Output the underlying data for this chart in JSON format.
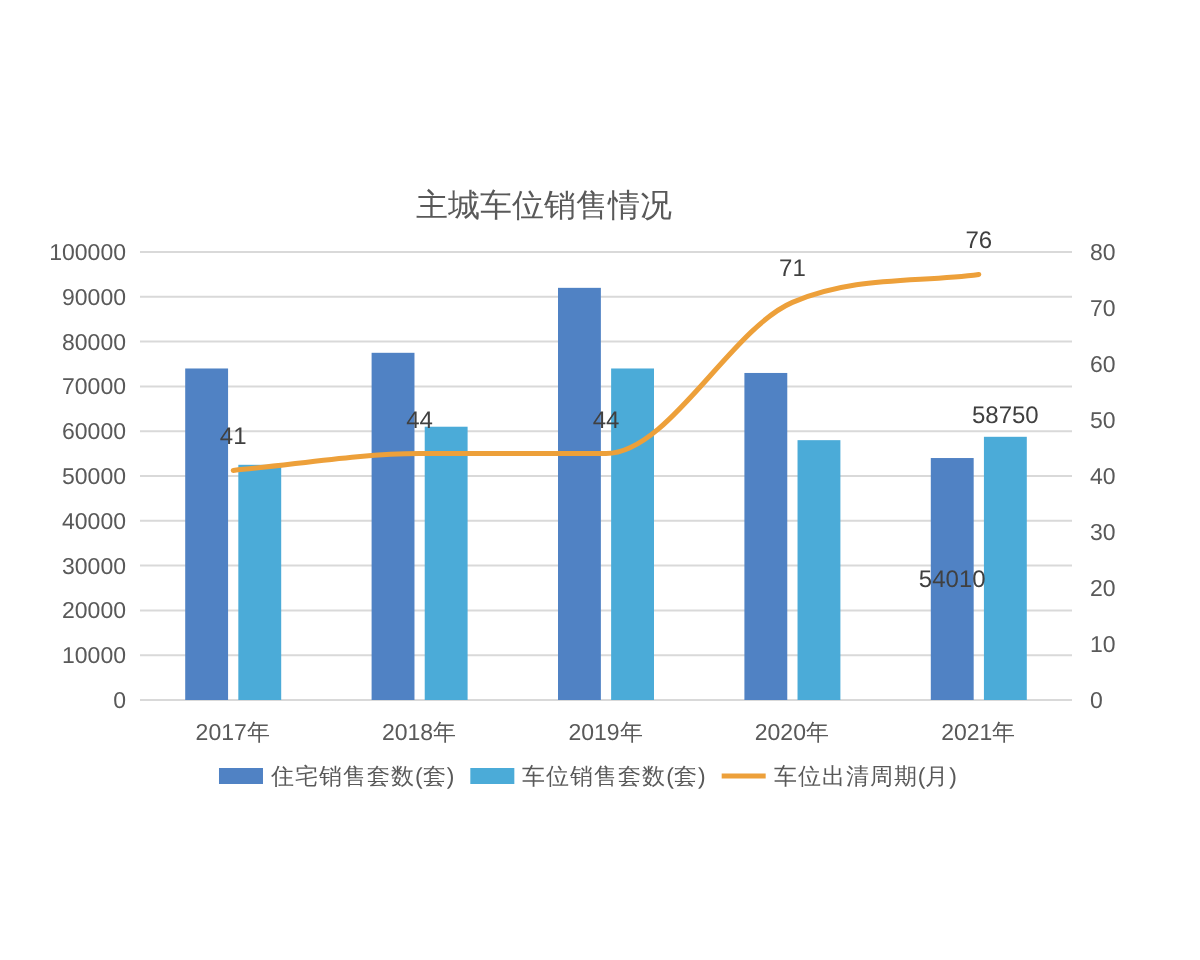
{
  "chart_data": {
    "type": "bar",
    "title": "主城车位销售情况",
    "categories": [
      "2017年",
      "2018年",
      "2019年",
      "2020年",
      "2021年"
    ],
    "series": [
      {
        "name": "住宅销售套数(套)",
        "color": "#5082c4",
        "values": [
          74000,
          77500,
          92000,
          73000,
          54010
        ],
        "value_labels": [
          null,
          null,
          null,
          null,
          "54010"
        ]
      },
      {
        "name": "车位销售套数(套)",
        "color": "#4babd8",
        "values": [
          52500,
          61000,
          74000,
          58000,
          58750
        ],
        "value_labels": [
          null,
          null,
          null,
          null,
          "58750"
        ]
      },
      {
        "name": "车位出清周期(月)",
        "type": "line",
        "axis": "y2",
        "color": "#eda03a",
        "values": [
          41,
          44,
          44,
          71,
          76
        ],
        "value_labels": [
          "41",
          "44",
          "44",
          "71",
          "76"
        ]
      }
    ],
    "ylim": [
      0,
      100000
    ],
    "yticks": [
      0,
      10000,
      20000,
      30000,
      40000,
      50000,
      60000,
      70000,
      80000,
      90000,
      100000
    ],
    "y2lim": [
      0,
      80
    ],
    "y2ticks": [
      0,
      10,
      20,
      30,
      40,
      50,
      60,
      70,
      80
    ],
    "grid": "y",
    "legend": "bottom"
  }
}
